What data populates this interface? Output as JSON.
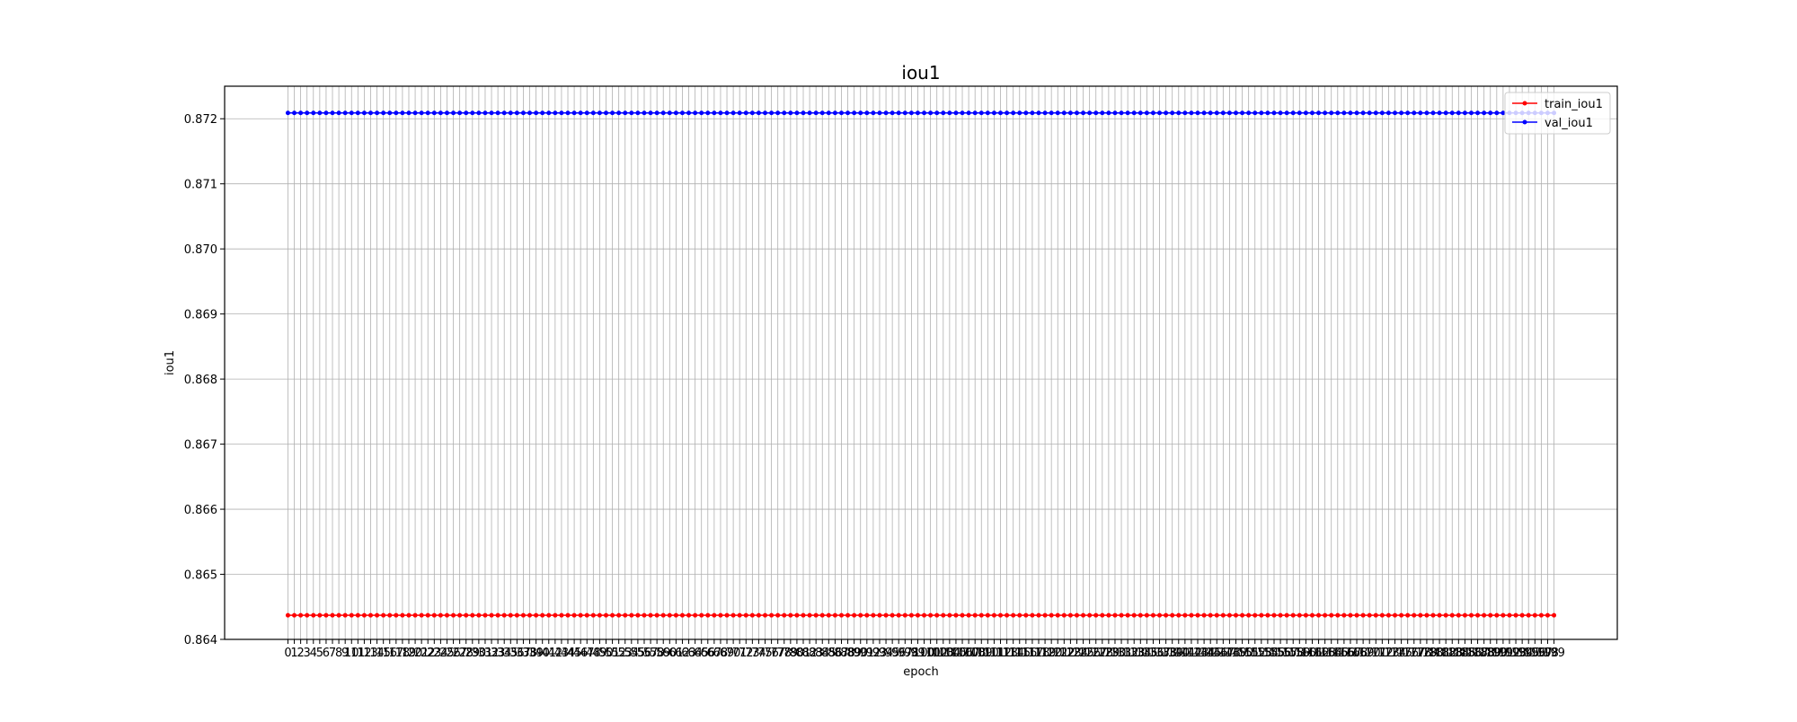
{
  "chart_data": {
    "type": "line",
    "title": "iou1",
    "xlabel": "epoch",
    "ylabel": "iou1",
    "x": {
      "start": 0,
      "end": 199,
      "step": 1
    },
    "xlim": [
      -9.95,
      208.95
    ],
    "ylim": [
      0.864,
      0.8725
    ],
    "yticks": [
      "0.864",
      "0.865",
      "0.866",
      "0.867",
      "0.868",
      "0.869",
      "0.870",
      "0.871",
      "0.872"
    ],
    "grid": true,
    "legend_position": "top-right",
    "series": [
      {
        "name": "train_iou1",
        "constant_value": 0.86437,
        "color": "#ff0000",
        "marker": "dot"
      },
      {
        "name": "val_iou1",
        "constant_value": 0.87209,
        "color": "#0000ff",
        "marker": "dot"
      }
    ]
  }
}
